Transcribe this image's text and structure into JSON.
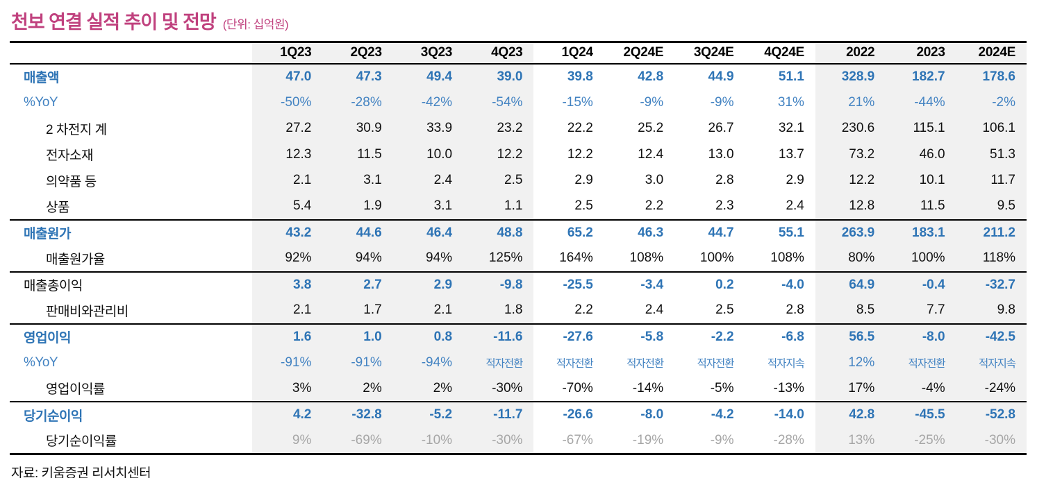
{
  "title": {
    "text": "천보 연결 실적 추이 및 전망",
    "unit": "(단위: 십억원)"
  },
  "colors": {
    "title_pink": "#C0417E",
    "accent_blue_bold": "#2E74B5",
    "accent_blue_regular": "#4383C2",
    "muted_gray_text": "#A6A6A6",
    "column_shade_bg": "#F1F1F1",
    "rule_black": "#000000"
  },
  "table": {
    "columns": [
      "1Q23",
      "2Q23",
      "3Q23",
      "4Q23",
      "1Q24",
      "2Q24E",
      "3Q24E",
      "4Q24E",
      "2022",
      "2023",
      "2024E"
    ],
    "shaded_column_indexes": [
      0,
      1,
      2,
      3,
      8,
      9,
      10
    ],
    "rows": [
      {
        "label": "매출액",
        "indent": false,
        "label_style": "bold-blue",
        "value_style": "bold-blue",
        "section_start": false,
        "values": [
          "47.0",
          "47.3",
          "49.4",
          "39.0",
          "39.8",
          "42.8",
          "44.9",
          "51.1",
          "328.9",
          "182.7",
          "178.6"
        ]
      },
      {
        "label": "%YoY",
        "indent": false,
        "label_style": "blue",
        "value_style": "blue",
        "section_start": false,
        "values": [
          "-50%",
          "-28%",
          "-42%",
          "-54%",
          "-15%",
          "-9%",
          "-9%",
          "31%",
          "21%",
          "-44%",
          "-2%"
        ]
      },
      {
        "label": "2 차전지 계",
        "indent": true,
        "label_style": "black",
        "value_style": "black",
        "section_start": false,
        "values": [
          "27.2",
          "30.9",
          "33.9",
          "23.2",
          "22.2",
          "25.2",
          "26.7",
          "32.1",
          "230.6",
          "115.1",
          "106.1"
        ]
      },
      {
        "label": "전자소재",
        "indent": true,
        "label_style": "black",
        "value_style": "black",
        "section_start": false,
        "values": [
          "12.3",
          "11.5",
          "10.0",
          "12.2",
          "12.2",
          "12.4",
          "13.0",
          "13.7",
          "73.2",
          "46.0",
          "51.3"
        ]
      },
      {
        "label": "의약품 등",
        "indent": true,
        "label_style": "black",
        "value_style": "black",
        "section_start": false,
        "values": [
          "2.1",
          "3.1",
          "2.4",
          "2.5",
          "2.9",
          "3.0",
          "2.8",
          "2.9",
          "12.2",
          "10.1",
          "11.7"
        ]
      },
      {
        "label": "상품",
        "indent": true,
        "label_style": "black",
        "value_style": "black",
        "section_start": false,
        "values": [
          "5.4",
          "1.9",
          "3.1",
          "1.1",
          "2.5",
          "2.2",
          "2.3",
          "2.4",
          "12.8",
          "11.5",
          "9.5"
        ]
      },
      {
        "label": "매출원가",
        "indent": false,
        "label_style": "bold-blue",
        "value_style": "bold-blue",
        "section_start": true,
        "values": [
          "43.2",
          "44.6",
          "46.4",
          "48.8",
          "65.2",
          "46.3",
          "44.7",
          "55.1",
          "263.9",
          "183.1",
          "211.2"
        ]
      },
      {
        "label": "매출원가율",
        "indent": true,
        "label_style": "black",
        "value_style": "black",
        "section_start": false,
        "values": [
          "92%",
          "94%",
          "94%",
          "125%",
          "164%",
          "108%",
          "100%",
          "108%",
          "80%",
          "100%",
          "118%"
        ]
      },
      {
        "label": "매출총이익",
        "indent": false,
        "label_style": "black",
        "value_style": "bold-blue",
        "section_start": true,
        "values": [
          "3.8",
          "2.7",
          "2.9",
          "-9.8",
          "-25.5",
          "-3.4",
          "0.2",
          "-4.0",
          "64.9",
          "-0.4",
          "-32.7"
        ]
      },
      {
        "label": "판매비와관리비",
        "indent": true,
        "label_style": "black",
        "value_style": "black",
        "section_start": false,
        "values": [
          "2.1",
          "1.7",
          "2.1",
          "1.8",
          "2.2",
          "2.4",
          "2.5",
          "2.8",
          "8.5",
          "7.7",
          "9.8"
        ]
      },
      {
        "label": "영업이익",
        "indent": false,
        "label_style": "bold-blue",
        "value_style": "bold-blue",
        "section_start": true,
        "values": [
          "1.6",
          "1.0",
          "0.8",
          "-11.6",
          "-27.6",
          "-5.8",
          "-2.2",
          "-6.8",
          "56.5",
          "-8.0",
          "-42.5"
        ]
      },
      {
        "label": "%YoY",
        "indent": false,
        "label_style": "blue",
        "value_style": "blue",
        "section_start": false,
        "values": [
          "-91%",
          "-91%",
          "-94%",
          "적자전환",
          "적자전환",
          "적자전환",
          "적자전환",
          "적자지속",
          "12%",
          "적자전환",
          "적자지속"
        ]
      },
      {
        "label": "영업이익률",
        "indent": true,
        "label_style": "black",
        "value_style": "black",
        "section_start": false,
        "values": [
          "3%",
          "2%",
          "2%",
          "-30%",
          "-70%",
          "-14%",
          "-5%",
          "-13%",
          "17%",
          "-4%",
          "-24%"
        ]
      },
      {
        "label": "당기순이익",
        "indent": false,
        "label_style": "bold-blue",
        "value_style": "bold-blue",
        "section_start": true,
        "values": [
          "4.2",
          "-32.8",
          "-5.2",
          "-11.7",
          "-26.6",
          "-8.0",
          "-4.2",
          "-14.0",
          "42.8",
          "-45.5",
          "-52.8"
        ]
      },
      {
        "label": "당기순이익률",
        "indent": true,
        "label_style": "black",
        "value_style": "gray",
        "section_start": false,
        "values": [
          "9%",
          "-69%",
          "-10%",
          "-30%",
          "-67%",
          "-19%",
          "-9%",
          "-28%",
          "13%",
          "-25%",
          "-30%"
        ]
      }
    ]
  },
  "footer": {
    "source": "자료: 키움증권 리서치센터"
  }
}
